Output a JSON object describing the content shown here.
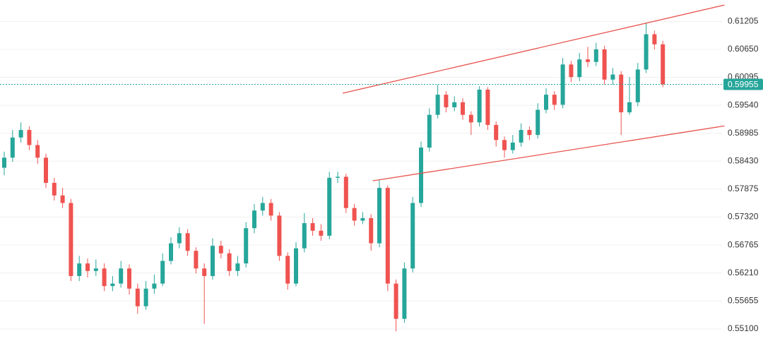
{
  "chart_data": {
    "type": "candlestick",
    "open": [
      0.583,
      0.585,
      0.589,
      0.5905,
      0.5875,
      0.585,
      0.58,
      0.5775,
      0.576,
      0.5615,
      0.564,
      0.5625,
      0.563,
      0.5595,
      0.56,
      0.563,
      0.559,
      0.5555,
      0.559,
      0.56,
      0.5645,
      0.568,
      0.57,
      0.5665,
      0.563,
      0.5615,
      0.5675,
      0.566,
      0.5625,
      0.564,
      0.571,
      0.5745,
      0.576,
      0.5735,
      0.5655,
      0.56,
      0.567,
      0.572,
      0.5705,
      0.5695,
      0.581,
      0.5812,
      0.575,
      0.5725,
      0.573,
      0.568,
      0.579,
      0.56,
      0.553,
      0.563,
      0.576,
      0.587,
      0.5935,
      0.5975,
      0.595,
      0.596,
      0.5935,
      0.592,
      0.5985,
      0.5915,
      0.5885,
      0.5865,
      0.588,
      0.5905,
      0.5895,
      0.5945,
      0.5975,
      0.5955,
      0.6035,
      0.601,
      0.6045,
      0.604,
      0.6065,
      0.6005,
      0.6015,
      0.594,
      0.596,
      0.6025,
      0.6095,
      0.6075
    ],
    "high": [
      0.5862,
      0.5905,
      0.592,
      0.5912,
      0.5885,
      0.5858,
      0.581,
      0.579,
      0.5768,
      0.5655,
      0.565,
      0.5648,
      0.564,
      0.5615,
      0.5645,
      0.5638,
      0.56,
      0.5605,
      0.5618,
      0.566,
      0.5692,
      0.5712,
      0.5708,
      0.5672,
      0.564,
      0.569,
      0.5685,
      0.5668,
      0.5655,
      0.5722,
      0.5758,
      0.5772,
      0.5768,
      0.5742,
      0.5662,
      0.5682,
      0.574,
      0.573,
      0.5718,
      0.5822,
      0.5822,
      0.5818,
      0.5758,
      0.5742,
      0.5738,
      0.5805,
      0.5795,
      0.5608,
      0.5642,
      0.5772,
      0.5882,
      0.5948,
      0.5995,
      0.5982,
      0.5972,
      0.5968,
      0.5942,
      0.5992,
      0.599,
      0.5922,
      0.5892,
      0.5895,
      0.5918,
      0.5912,
      0.5958,
      0.5988,
      0.5982,
      0.6048,
      0.6042,
      0.6058,
      0.607,
      0.6078,
      0.6072,
      0.6028,
      0.6022,
      0.601,
      0.6038,
      0.6118,
      0.6102,
      0.6082
    ],
    "low": [
      0.5815,
      0.5842,
      0.588,
      0.5865,
      0.5838,
      0.579,
      0.5765,
      0.575,
      0.5605,
      0.5605,
      0.5612,
      0.5615,
      0.5585,
      0.5585,
      0.5592,
      0.5578,
      0.554,
      0.5548,
      0.558,
      0.5595,
      0.5638,
      0.567,
      0.5655,
      0.562,
      0.552,
      0.5608,
      0.565,
      0.5615,
      0.5615,
      0.5632,
      0.57,
      0.5735,
      0.5725,
      0.5645,
      0.5588,
      0.5595,
      0.5662,
      0.5695,
      0.5685,
      0.5688,
      0.58,
      0.574,
      0.5715,
      0.5718,
      0.5665,
      0.5672,
      0.5585,
      0.5505,
      0.5522,
      0.5622,
      0.5752,
      0.5862,
      0.5928,
      0.594,
      0.5942,
      0.5925,
      0.5895,
      0.5912,
      0.5905,
      0.5872,
      0.585,
      0.5858,
      0.5872,
      0.5885,
      0.5888,
      0.5938,
      0.5945,
      0.5948,
      0.6,
      0.6002,
      0.603,
      0.6032,
      0.5995,
      0.5995,
      0.5895,
      0.5935,
      0.5952,
      0.6018,
      0.6065,
      0.599
    ],
    "close": [
      0.585,
      0.589,
      0.5905,
      0.5875,
      0.585,
      0.58,
      0.5775,
      0.576,
      0.5615,
      0.564,
      0.5625,
      0.563,
      0.5595,
      0.56,
      0.563,
      0.559,
      0.5555,
      0.559,
      0.56,
      0.5645,
      0.568,
      0.57,
      0.5665,
      0.563,
      0.5615,
      0.5675,
      0.566,
      0.5625,
      0.564,
      0.571,
      0.5745,
      0.576,
      0.5735,
      0.5655,
      0.56,
      0.567,
      0.572,
      0.5705,
      0.5695,
      0.581,
      0.5812,
      0.575,
      0.5725,
      0.573,
      0.568,
      0.579,
      0.56,
      0.553,
      0.563,
      0.576,
      0.587,
      0.5935,
      0.5975,
      0.595,
      0.596,
      0.5935,
      0.592,
      0.5985,
      0.5915,
      0.5885,
      0.5865,
      0.588,
      0.5905,
      0.5895,
      0.5945,
      0.5975,
      0.5955,
      0.6035,
      0.601,
      0.6045,
      0.604,
      0.6065,
      0.6005,
      0.6015,
      0.594,
      0.596,
      0.6025,
      0.6095,
      0.6075,
      0.59955
    ],
    "up_color": "#26a69a",
    "down_color": "#ef5350",
    "ylim": [
      0.5486,
      0.6163
    ],
    "yticks": [
      0.61205,
      {
        "value": 0.6065,
        "label": "0.60650"
      },
      0.60095,
      {
        "value": 0.5954,
        "label": "0.59540"
      },
      0.58985,
      {
        "value": 0.5843,
        "label": "0.58430"
      },
      0.57875,
      {
        "value": 0.5732,
        "label": "0.57320"
      },
      0.56765,
      {
        "value": 0.5621,
        "label": "0.56210"
      },
      0.55655,
      {
        "value": 0.551,
        "label": "0.55100"
      }
    ],
    "grid": true,
    "last_price": 0.59955,
    "trendlines": [
      {
        "color": "#e8544e",
        "x": [
          40.6,
          86.4
        ],
        "y": [
          0.5978,
          0.6153
        ]
      },
      {
        "color": "#e8544e",
        "x": [
          44.2,
          86.4
        ],
        "y": [
          0.5804,
          0.5913
        ]
      }
    ]
  }
}
